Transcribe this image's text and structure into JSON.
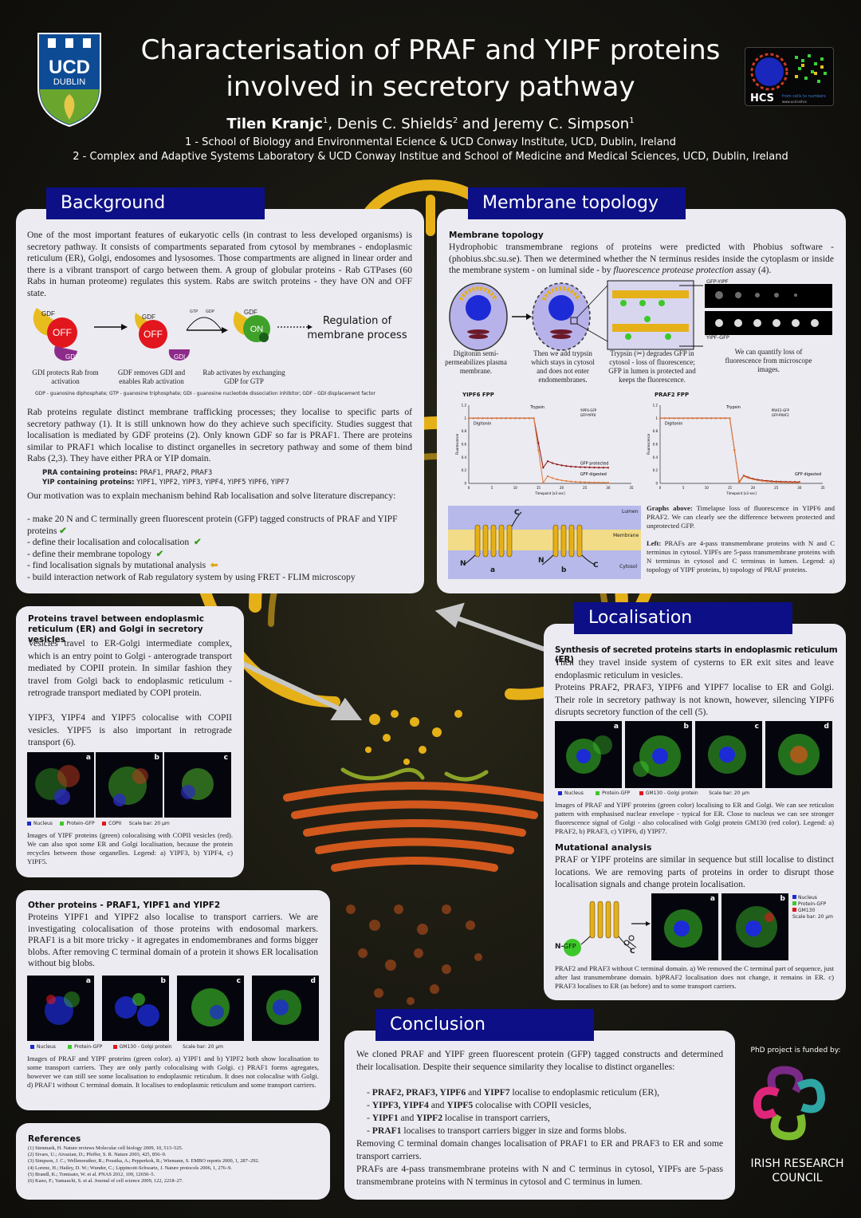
{
  "header": {
    "logo_ucd_text": "UCD",
    "logo_ucd_sub": "DUBLIN",
    "title_line1": "Characterisation of PRAF and YIPF proteins",
    "title_line2": "involved in secretory pathway",
    "author1": "Tilen Kranjc",
    "author1_sup": "1",
    "author2": ", Denis C. Shields",
    "author2_sup": "2",
    "author3": " and Jeremy C. Simpson",
    "author3_sup": "1",
    "affiliation1": "1 - School of Biology and Environmental Ecience & UCD Conway Institute, UCD, Dublin, Ireland",
    "affiliation2": "2 - Complex and Adaptive Systems Laboratory & UCD Conway Institue and School of Medicine and Medical Sciences, UCD, Dublin, Ireland",
    "hcs_label": "HCS",
    "hcs_tagline": "from cells to numbers",
    "hcs_url": "www.ucd.ie/hcs"
  },
  "background": {
    "heading": "Background",
    "p1": "One of the most important features of eukaryotic cells (in contrast to less developed organisms) is secretory pathway. It consists of compartments separated from cytosol by membranes - endoplasmic reticulum (ER), Golgi, endosomes and lysosomes. Those compartments are aligned in linear order and there is a vibrant transport of cargo between them. A group of globular proteins - Rab GTPases (60 Rabs in human proteome) regulates this system. Rabs are switch proteins - they have ON and OFF state.",
    "diag_gdf": "GDF",
    "diag_off": "OFF",
    "diag_on": "ON",
    "diag_gdi": "GDI",
    "diag_rab": "Rab",
    "diag_gtp": "GTP",
    "diag_gdp": "GDP",
    "diag_cap1": "GDI protects Rab from activation",
    "diag_cap2": "GDF removes GDI and enables Rab activation",
    "diag_cap3": "Rab activates by exchanging GDP for GTP",
    "diag_reg": "Regulation of membrane process",
    "diag_legend": "GDP - guanosine diphosphate; GTP - guanosine triphosphate; GDI - guanosine nucleotide dissociation inhibitor; GDF - GDI displacement factor",
    "p2": "Rab proteins regulate distinct membrane trafficking processes; they localise to specific parts of secretory pathway (1). It is still unknown how do they achieve such specificity. Studies suggest that localisation is mediated by GDF proteins (2). Only known GDF so far is PRAF1. There are proteins similar to PRAF1 which localise to distinct organelles in secretory pathway and some of them bind Rabs (2,3). They have either PRA or YIP domain.",
    "pra_label": "PRA containing proteins:",
    "pra_list": " PRAF1, PRAF2, PRAF3",
    "yip_label": "YIP containing proteins:",
    "yip_list": " YIPF1, YIPF2, YIPF3, YIPF4, YIPF5 YIPF6, YIPF7",
    "p3": "Our motivation was to explain mechanism behind Rab localisation and solve literature discrepancy:",
    "bullets": [
      "- make 20 N and C terminally green fluorescent protein (GFP) tagged constructs of PRAF and YIPF proteins",
      "- define their localisation and colocalisation",
      "- define their membrane topology",
      "- find localisation signals by mutational analysis",
      "- build interaction network of Rab regulatory system by using FRET - FLIM microscopy"
    ],
    "check": "✔",
    "arrow_left": "⬅"
  },
  "topology": {
    "heading": "Membrane topology",
    "subtitle": "Membrane topology",
    "p1a": "Hydrophobic transmembrane regions of proteins were predicted with Phobius software - (phobius.sbc.su.se). Then we determined whether the N terminus resides inside the cytoplasm or inside the membrane system - on luminal side - by ",
    "p1b": "fluorescence protease protection",
    "p1c": " assay (4).",
    "cap1": "Digitonin semi-permeabilizes plasma membrane.",
    "cap2": "Then we add trypsin which stays in cytosol and does not enter endomembranes.",
    "cap3": "Trypsin (✂) degrades GFP in cytosol - loss of fluorescence; GFP in lumen is protected and keeps the fluorescence.",
    "cap4": "We can quantify loss of fluorescence from microscope images.",
    "gfp_yipf": "GFP-YIPF",
    "yipf_gfp": "YIPF-GFP",
    "graph1_title": "YIPF6 FPP",
    "graph2_title": "PRAF2 FPP",
    "trypsin": "Trypsin",
    "digitonin": "Digitonin",
    "gfp_protected": "GFP protected",
    "gfp_digested": "GFP digested",
    "x_label": "Timepoint [x3 sec]",
    "y_label": "Fluorescence",
    "legend1_a": "YIPF6-GFP",
    "legend1_b": "GFP-YIPF6",
    "legend2_a": "PRAF2-GFP",
    "legend2_b": "GFP-PRAF2",
    "mem_lumen": "Lumen",
    "mem_membrane": "Membrane",
    "mem_cytosol": "Cytosol",
    "mem_a": "a",
    "mem_b": "b",
    "mem_n": "N",
    "mem_c": "C",
    "graphs_cap_b": "Graphs above:",
    "graphs_cap": " Timelapse loss of fluorescence in YIPF6 and PRAF2. We can clearly see the difference between protected and unprotected GFP.",
    "left_cap_b": "Left:",
    "left_cap": " PRAFs are 4-pass transmembrane proteins with N and C terminus in cytosol. YIPFs are 5-pass transmembrane proteins with N terminus in cytosol and C terminus in lumen. Legend: a) topology of YIPF proteins, b) topology of PRAF proteins."
  },
  "er_golgi": {
    "title": "Proteins travel between endoplasmic reticulum (ER) and Golgi in secretory vesicles",
    "p1": "Vesicles travel to ER-Golgi intermediate complex, which is an entry point to Golgi - anterograde transport mediated by COPII protein. In similar fashion they travel from Golgi back to endoplasmic reticulum - retrograde transport mediated by COPI protein.",
    "p2": "YIPF3, YIPF4 and YIPF5 colocalise with COPII vesicles. YIPF5 is also important in retrograde transport (6).",
    "img_labels": [
      "a",
      "b",
      "c"
    ],
    "legend": [
      "Nucleus",
      "Protein-GFP",
      "COPII",
      "Scale bar: 20 µm"
    ],
    "caption": "Images of YIPF proteins (green) colocalising with COPII vesicles (red). We can also spot some ER and Golgi localisation, because the protein recycles between those organelles. Legend: a) YIPF3, b) YIPF4, c) YIPF5."
  },
  "other": {
    "title": "Other proteins - PRAF1, YIPF1 and YIPF2",
    "p1": "Proteins YIPF1 and YIPF2 also localise to transport carriers. We are investigating colocalisation of those proteins with endosomal markers. PRAF1 is a bit more tricky - it agregates in endomembranes and forms bigger blobs. After removing C terminal domain of a protein it shows ER localisation without big blobs.",
    "img_labels": [
      "a",
      "b",
      "c",
      "d"
    ],
    "legend": [
      "Nucleus",
      "Protein-GFP",
      "GM130 - Golgi protein",
      "Scale bar: 20 µm"
    ],
    "caption": "Images of PRAF and YIPF proteins (green color). a) YIPF1 and b) YIPF2 both show localisation to some transport carriers. They are only partly colocalising with Golgi. c) PRAF1 forms agregates, however we can still see some localisation to endoplasmic reticulum. It does not colocalise with Golgi. d) PRAF1 without C terminal domain. It localises to endoplasmic reticulum and some transport carriers."
  },
  "references": {
    "title": "References",
    "items": [
      "(1) Stenmark, H. Nature reviews Molecular cell biology 2009, 10, 513–525.",
      "(2) Sivars, U.; Aivazian, D.; Pfeffer, S. R. Nature 2003, 425, 856–9.",
      "(3) Simpson, J. C.; Wellenreuther, R.; Poustka, A.; Pepperkok, R.; Wiemann, S. EMBO reports 2000, 1, 287–292.",
      "(4) Lorenz, H.; Hailey, D. W.; Wunder, C.; Lippincott-Schwartz, J. Nature protocols 2006, 1, 276–9.",
      "(5) Brandl, K.; Tomisato, W. et al. PNAS 2012, 109, 12650–5.",
      "(6) Kano, F.; Yamauchi, S. et al. Journal of cell science 2009, 122, 2218–27."
    ]
  },
  "localisation": {
    "heading": "Localisation",
    "title": "Synthesis of secreted proteins starts in endoplasmic reticulum (ER)",
    "p1": "Then they travel inside system of cysterns to ER exit sites and leave endoplasmic reticulum in vesicles.",
    "p2": "Proteins PRAF2, PRAF3, YIPF6 and YIPF7 localise to ER and Golgi. Their role in secretory pathway is not known, however, silencing YIPF6 disrupts secretory function of the cell (5).",
    "img_labels": [
      "a",
      "b",
      "c",
      "d"
    ],
    "legend": [
      "Nucleus",
      "Protein-GFP",
      "GM130 - Golgi protein",
      "Scale bar: 20 µm"
    ],
    "caption": "Images of PRAF and YIPF proteins (green color) localising to ER and Golgi. We can see reticulon pattern with emphasised nuclear envelope - typical for ER. Close to nucleus we can see stronger fluorescence signal of Golgi - also colocalised with Golgi protein GM130 (red color). Legend: a) PRAF2, b) PRAF3, c) YIPF6, d) YIPF7.",
    "mut_title": "Mutational analysis",
    "mut_p": "PRAF or YIPF proteins are similar in sequence but still localise to distinct locations. We are removing parts of proteins in order to disrupt those localisation signals and change protein localisation.",
    "mut_n": "N-",
    "mut_gfp": "GFP",
    "mut_c": "C",
    "mut_labels": [
      "a",
      "b"
    ],
    "mut_legend": [
      "Nucleus",
      "Protein-GFP",
      "GM130",
      "Scale bar: 20 µm"
    ],
    "mut_caption": "PRAF2 and PRAF3 without C terminal domain. a) We removed the C terminal part of sequence, just after last transmembrane domain. b)PRAF2 localisation does not change, it remains in ER. c) PRAF3 localises to ER (as before) and to some transport carriers."
  },
  "conclusion": {
    "heading": "Conclusion",
    "p1": "We cloned PRAF and YIPF green fluorescent protein (GFP) tagged constructs and determined their localisation. Despite their sequence similarity they localise to distinct organelles:",
    "items": [
      {
        "bold": "PRAF2, PRAF3, YIPF6",
        "mid": " and ",
        "bold2": "YIPF7",
        "rest": " localise to endoplasmic reticulum (ER),"
      },
      {
        "bold": "YIPF3, YIPF4",
        "mid": " and ",
        "bold2": "YIPF5",
        "rest": " colocalise with COPII vesicles,"
      },
      {
        "bold": "YIPF1",
        "mid": " and ",
        "bold2": "YIPF2",
        "rest": " localise in transport carriers,"
      },
      {
        "bold": "PRAF1",
        "mid": "",
        "bold2": "",
        "rest": " localises to transport carriers bigger in size and forms blobs."
      }
    ],
    "p2": "Removing C terminal domain changes localisation of PRAF1 to ER and PRAF3 to ER and some transport carriers.",
    "p3": "PRAFs are 4-pass transmembrane proteins with N and C terminus in cytosol, YIPFs are 5-pass transmembrane proteins with N terminus in cytosol and C terminus in lumen."
  },
  "funding": {
    "label": "PhD project is funded by:",
    "org_line1": "IRISH RESEARCH",
    "org_line2": "COUNCIL"
  },
  "colors": {
    "panel_bg": "#ecebf1",
    "heading_bg": "#0d0f86",
    "er_yellow": "#e6b019",
    "golgi_orange": "#d2581d",
    "gfp_green": "#3dc82a"
  }
}
